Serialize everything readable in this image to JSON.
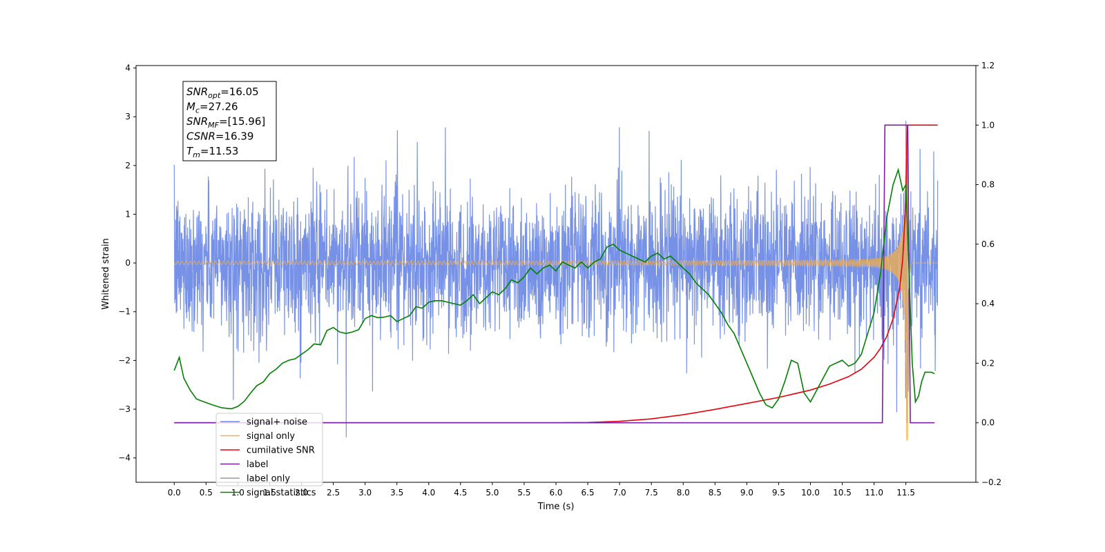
{
  "chart_data": {
    "type": "line",
    "title": "",
    "xlabel": "Time (s)",
    "ylabel": "Whitened strain",
    "y2label": "",
    "xlim": [
      -0.6,
      12.6
    ],
    "ylim": [
      -4.5,
      4.05
    ],
    "y2lim": [
      -0.2,
      1.2
    ],
    "xticks": [
      0.0,
      0.5,
      1.0,
      1.5,
      2.0,
      2.5,
      3.0,
      3.5,
      4.0,
      4.5,
      5.0,
      5.5,
      6.0,
      6.5,
      7.0,
      7.5,
      8.0,
      8.5,
      9.0,
      9.5,
      10.0,
      10.5,
      11.0,
      11.5
    ],
    "xtick_labels": [
      "0.0",
      "0.5",
      "1.0",
      "1.5",
      "2.0",
      "2.5",
      "3.0",
      "3.5",
      "4.0",
      "4.5",
      "5.0",
      "5.5",
      "6.0",
      "6.5",
      "7.0",
      "7.5",
      "8.0",
      "8.5",
      "9.0",
      "9.5",
      "10.0",
      "10.5",
      "11.0",
      "11.5"
    ],
    "yticks": [
      -4,
      -3,
      -2,
      -1,
      0,
      1,
      2,
      3,
      4
    ],
    "ytick_labels": [
      "−4",
      "−3",
      "−2",
      "−1",
      "0",
      "1",
      "2",
      "3",
      "4"
    ],
    "y2ticks": [
      -0.2,
      0.0,
      0.2,
      0.4,
      0.6,
      0.8,
      1.0,
      1.2
    ],
    "y2tick_labels": [
      "−0.2",
      "0.0",
      "0.2",
      "0.4",
      "0.6",
      "0.8",
      "1.0",
      "1.2"
    ],
    "grid": false,
    "legend_position": "lower-left",
    "series": [
      {
        "name": "signal+ noise",
        "axis": "left",
        "color": "#6b88e5",
        "description_only": "whitened noisy strain, noise std ~0.75 with spikes to about ±3.5, spans 0.0 to 12.0 s"
      },
      {
        "name": "signal only",
        "axis": "left",
        "color": "#f5b04a",
        "chirp": {
          "start": 0.0,
          "end": 12.0,
          "merger_time": 11.53,
          "peak_amplitude": 3.65
        }
      },
      {
        "name": "cumilative SNR",
        "axis": "right",
        "color": "#e8000b",
        "x": [
          0,
          6.0,
          6.5,
          7.0,
          7.5,
          8.0,
          8.5,
          9.0,
          9.5,
          10.0,
          10.3,
          10.6,
          10.8,
          11.0,
          11.1,
          11.2,
          11.3,
          11.4,
          11.45,
          11.5,
          11.52,
          11.54,
          11.6,
          12.0
        ],
        "values": [
          0.0,
          0.0,
          0.001,
          0.005,
          0.013,
          0.027,
          0.045,
          0.065,
          0.085,
          0.11,
          0.13,
          0.155,
          0.18,
          0.22,
          0.25,
          0.29,
          0.35,
          0.45,
          0.55,
          0.75,
          1.0,
          1.0,
          1.0,
          1.0
        ]
      },
      {
        "name": "label",
        "axis": "right",
        "color": "#7b1fa2",
        "x": [
          0.0,
          11.13,
          11.17,
          11.53,
          11.57,
          11.95
        ],
        "values": [
          0.0,
          0.0,
          1.0,
          1.0,
          0.0,
          0.0
        ]
      },
      {
        "name": "label only",
        "axis": "right",
        "color": "#9b9b9b",
        "x": [],
        "values": []
      },
      {
        "name": "signal statistics",
        "axis": "right",
        "color": "#008000",
        "x": [
          0.0,
          0.08,
          0.15,
          0.25,
          0.35,
          0.45,
          0.6,
          0.75,
          0.9,
          1.0,
          1.1,
          1.2,
          1.3,
          1.4,
          1.5,
          1.6,
          1.7,
          1.8,
          1.9,
          2.0,
          2.1,
          2.2,
          2.3,
          2.4,
          2.5,
          2.6,
          2.7,
          2.8,
          2.9,
          3.0,
          3.1,
          3.2,
          3.3,
          3.4,
          3.5,
          3.6,
          3.7,
          3.8,
          3.9,
          4.0,
          4.1,
          4.2,
          4.3,
          4.4,
          4.5,
          4.6,
          4.7,
          4.8,
          4.9,
          5.0,
          5.1,
          5.2,
          5.3,
          5.4,
          5.5,
          5.6,
          5.7,
          5.8,
          5.9,
          6.0,
          6.1,
          6.2,
          6.3,
          6.4,
          6.5,
          6.6,
          6.7,
          6.8,
          6.9,
          7.0,
          7.1,
          7.2,
          7.3,
          7.4,
          7.5,
          7.6,
          7.7,
          7.8,
          7.9,
          8.0,
          8.1,
          8.2,
          8.3,
          8.4,
          8.5,
          8.6,
          8.7,
          8.8,
          8.9,
          9.0,
          9.1,
          9.2,
          9.3,
          9.4,
          9.5,
          9.6,
          9.7,
          9.8,
          9.9,
          10.0,
          10.1,
          10.2,
          10.3,
          10.4,
          10.5,
          10.6,
          10.7,
          10.8,
          10.9,
          11.0,
          11.1,
          11.2,
          11.3,
          11.38,
          11.45,
          11.5,
          11.55,
          11.6,
          11.65,
          11.7,
          11.75,
          11.8,
          11.85,
          11.9,
          11.95
        ],
        "values": [
          0.176,
          0.22,
          0.15,
          0.11,
          0.08,
          0.072,
          0.06,
          0.05,
          0.047,
          0.055,
          0.072,
          0.1,
          0.125,
          0.137,
          0.165,
          0.18,
          0.2,
          0.21,
          0.215,
          0.23,
          0.245,
          0.265,
          0.262,
          0.31,
          0.32,
          0.305,
          0.3,
          0.305,
          0.313,
          0.35,
          0.36,
          0.353,
          0.355,
          0.36,
          0.34,
          0.35,
          0.36,
          0.39,
          0.385,
          0.405,
          0.41,
          0.41,
          0.405,
          0.4,
          0.395,
          0.41,
          0.43,
          0.4,
          0.42,
          0.44,
          0.43,
          0.45,
          0.48,
          0.47,
          0.49,
          0.52,
          0.5,
          0.52,
          0.53,
          0.51,
          0.54,
          0.53,
          0.52,
          0.54,
          0.52,
          0.54,
          0.55,
          0.59,
          0.6,
          0.58,
          0.57,
          0.56,
          0.55,
          0.54,
          0.56,
          0.57,
          0.55,
          0.56,
          0.54,
          0.52,
          0.5,
          0.47,
          0.45,
          0.43,
          0.4,
          0.37,
          0.33,
          0.3,
          0.25,
          0.2,
          0.15,
          0.1,
          0.06,
          0.05,
          0.08,
          0.14,
          0.21,
          0.2,
          0.1,
          0.07,
          0.11,
          0.15,
          0.19,
          0.2,
          0.21,
          0.19,
          0.2,
          0.23,
          0.3,
          0.37,
          0.5,
          0.69,
          0.8,
          0.85,
          0.78,
          0.8,
          0.5,
          0.2,
          0.07,
          0.09,
          0.14,
          0.17,
          0.17,
          0.17,
          0.165
        ]
      }
    ],
    "annotation": {
      "lines": [
        {
          "symbol": "SNR",
          "sub": "opt",
          "value": "=16.05"
        },
        {
          "symbol": "M",
          "sub": "c",
          "value": "=27.26"
        },
        {
          "symbol": "SNR",
          "sub": "MF",
          "value": "=[15.96]"
        },
        {
          "symbol": "CSNR",
          "sub": "",
          "value": "=16.39"
        },
        {
          "symbol": "T",
          "sub": "m",
          "value": "=11.53"
        }
      ]
    }
  }
}
